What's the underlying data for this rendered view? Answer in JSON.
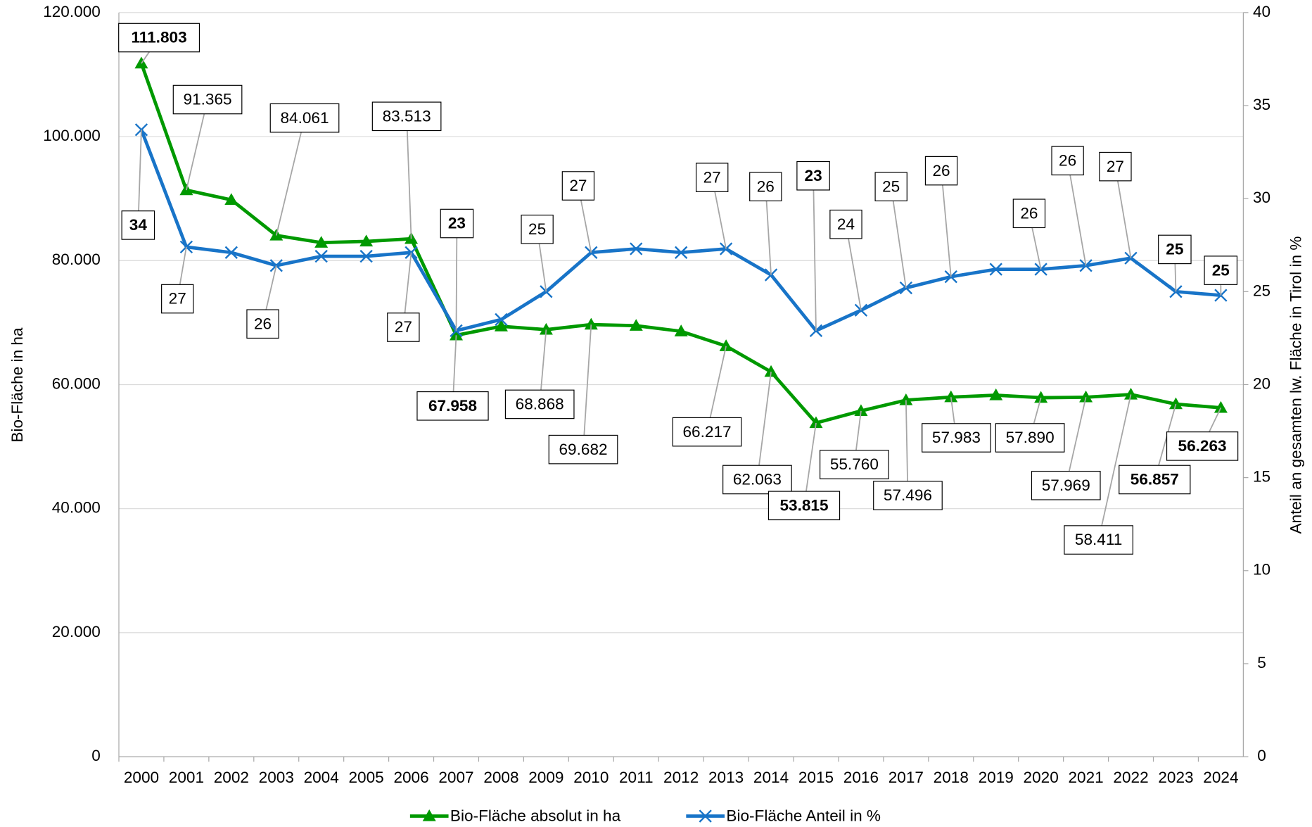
{
  "chart_data": {
    "type": "line",
    "categories": [
      "2000",
      "2001",
      "2002",
      "2003",
      "2004",
      "2005",
      "2006",
      "2007",
      "2008",
      "2009",
      "2010",
      "2011",
      "2012",
      "2013",
      "2014",
      "2015",
      "2016",
      "2017",
      "2018",
      "2019",
      "2020",
      "2021",
      "2022",
      "2023",
      "2024"
    ],
    "ylabel": "Bio-Fläche in ha",
    "y2label": "Anteil an gesamten lw. Fläche in Tirol in %",
    "ylim": [
      0,
      120000
    ],
    "yticks": [
      0,
      {
        "value": 20000,
        "label": "20.000"
      },
      {
        "value": 40000,
        "label": "40.000"
      },
      {
        "value": 60000,
        "label": "60.000"
      },
      {
        "value": 80000,
        "label": "80.000"
      },
      {
        "value": 100000,
        "label": "100.000"
      },
      {
        "value": 120000,
        "label": "120.000"
      }
    ],
    "y2lim": [
      0,
      40
    ],
    "y2ticks": [
      0,
      5,
      10,
      15,
      20,
      25,
      30,
      35,
      40
    ],
    "grid": true,
    "legend": "bottom",
    "series": [
      {
        "name": "Bio-Fläche absolut in ha",
        "color": "#009900",
        "marker": "triangle",
        "values": [
          111803,
          91365,
          89800,
          84061,
          82900,
          83100,
          83513,
          67958,
          69400,
          68868,
          69682,
          69500,
          68600,
          66217,
          62063,
          53815,
          55760,
          57496,
          57983,
          58300,
          57890,
          57969,
          58411,
          56857,
          56263
        ],
        "value_labels": [
          "111.803",
          "91.365",
          null,
          "84.061",
          null,
          null,
          "83.513",
          "67.958",
          null,
          "68.868",
          "69.682",
          null,
          null,
          "66.217",
          "62.063",
          "53.815",
          "55.760",
          "57.496",
          "57.983",
          null,
          "57.890",
          "57.969",
          "58.411",
          "56.857",
          "56.263"
        ]
      },
      {
        "name": "Bio-Fläche Anteil in %",
        "color": "#1874c8",
        "marker": "x",
        "axis": "y2",
        "values": [
          33.7,
          27.4,
          27.1,
          26.4,
          26.9,
          26.9,
          27.1,
          22.9,
          23.5,
          25.0,
          27.1,
          27.3,
          27.1,
          27.3,
          25.9,
          22.9,
          24.0,
          25.2,
          25.8,
          26.2,
          26.2,
          26.4,
          26.8,
          25.0,
          24.8
        ],
        "value_labels": [
          "34",
          "27",
          null,
          "26",
          null,
          null,
          "27",
          "23",
          null,
          "25",
          "27",
          null,
          null,
          "27",
          "26",
          "23",
          "24",
          "25",
          "26",
          null,
          "26",
          "26",
          "27",
          "25",
          "25"
        ]
      }
    ]
  }
}
